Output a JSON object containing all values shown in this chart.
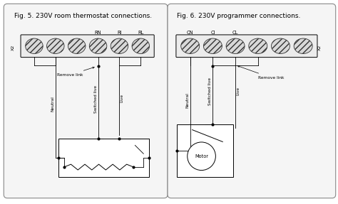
{
  "fig5_title": "Fig. 5. 230V room thermostat connections.",
  "fig6_title": "Fig. 6. 230V programmer connections.",
  "fig5_labels_top": [
    "RN",
    "RI",
    "RL"
  ],
  "fig6_labels_top": [
    "CN",
    "CI",
    "CL"
  ],
  "x2_label": "X2",
  "neutral_label": "Neutral",
  "switched_live_label": "Switched live",
  "live_label": "Live",
  "remove_link_label": "Remove link",
  "motor_label": "Motor",
  "bg_color": "#ffffff",
  "box_color": "#000000",
  "line_color": "#000000",
  "panel_edge": "#888888",
  "panel_face": "#f5f5f5",
  "term_face": "#e0e0e0",
  "font_size_title": 6.5,
  "font_size_label": 4.8,
  "font_size_small": 4.2,
  "font_size_x2": 4.5
}
